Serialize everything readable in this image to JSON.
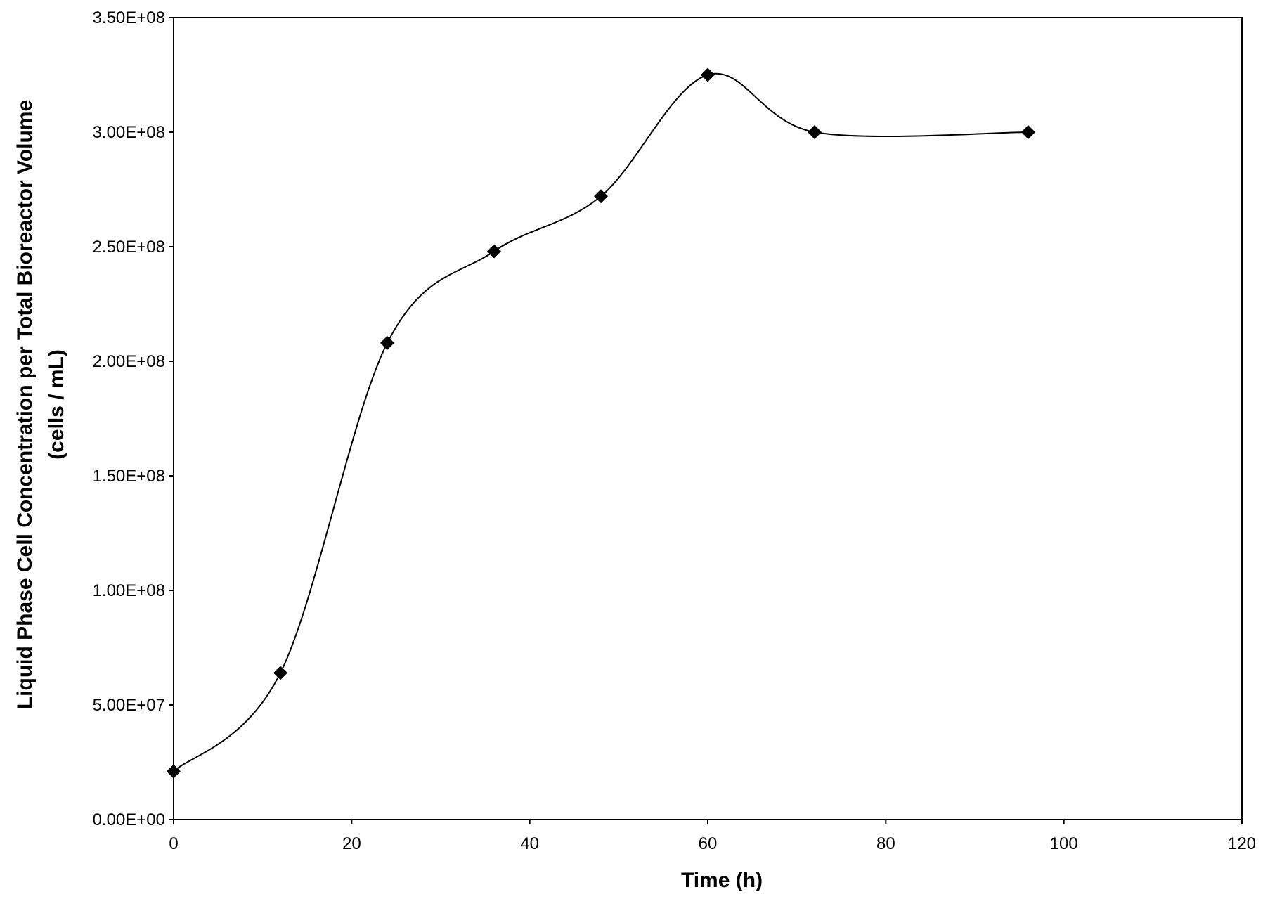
{
  "chart_data": {
    "type": "scatter",
    "title": "",
    "xlabel": "Time (h)",
    "ylabel_line1": "Liquid Phase Cell Concentration per Total Bioreactor Volume",
    "ylabel_line2": "(cells / mL)",
    "xlim": [
      0,
      120
    ],
    "ylim": [
      0,
      350000000
    ],
    "grid": false,
    "smoothed_line": true,
    "marker": "diamond",
    "x_ticks": [
      0,
      20,
      40,
      60,
      80,
      100,
      120
    ],
    "x_tick_labels": [
      "0",
      "20",
      "40",
      "60",
      "80",
      "100",
      "120"
    ],
    "y_ticks": [
      0,
      50000000,
      100000000,
      150000000,
      200000000,
      250000000,
      300000000,
      350000000
    ],
    "y_tick_labels": [
      "0.00E+00",
      "5.00E+07",
      "1.00E+08",
      "1.50E+08",
      "2.00E+08",
      "2.50E+08",
      "3.00E+08",
      "3.50E+08"
    ],
    "series": [
      {
        "name": "Liquid phase cell concentration",
        "color": "#000000",
        "x": [
          0,
          12,
          24,
          36,
          48,
          60,
          72,
          96
        ],
        "y": [
          21000000,
          64000000,
          208000000,
          248000000,
          272000000,
          325000000,
          300000000,
          300000000
        ]
      }
    ]
  }
}
